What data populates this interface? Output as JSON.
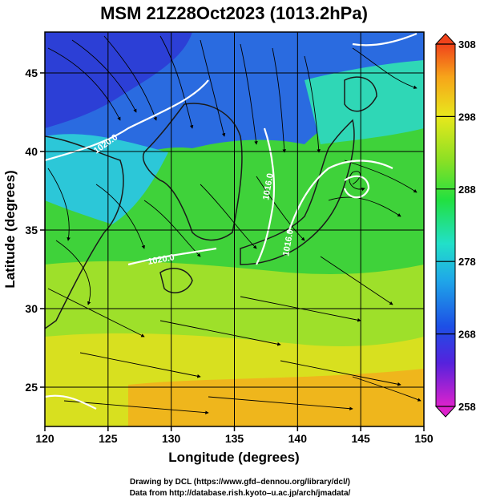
{
  "title": "MSM 21Z28Oct2023 (1013.2hPa)",
  "xlabel": "Longitude (degrees)",
  "ylabel": "Latitude  (degrees)",
  "credit_line1": "Drawing by DCL (https://www.gfd–dennou.org/library/dcl/)",
  "credit_line2": "Data from http://database.rish.kyoto–u.ac.jp/arch/jmadata/",
  "chart_data": {
    "type": "heatmap",
    "xlim": [
      120,
      150
    ],
    "ylim": [
      22.5,
      47.6
    ],
    "x_ticks": [
      120,
      125,
      130,
      135,
      140,
      145,
      150
    ],
    "y_ticks": [
      25,
      30,
      35,
      40,
      45
    ],
    "grid": true,
    "colorbar": {
      "range": [
        258,
        308
      ],
      "ticks": [
        258,
        268,
        278,
        288,
        298,
        308
      ],
      "stops": [
        "#dd22cc",
        "#5522dd",
        "#1d4fe6",
        "#1fa8e8",
        "#22e0c8",
        "#22e040",
        "#8ce024",
        "#e8e81c",
        "#f7a41a",
        "#f0431b"
      ]
    },
    "contour_labels": [
      "1020.0",
      "1016.0",
      "1020.0",
      "1016.0",
      "1016.0"
    ]
  },
  "colors": {
    "land_dark": "#1a1a1a",
    "contour": "#ffffff",
    "streamline": "#000000"
  }
}
